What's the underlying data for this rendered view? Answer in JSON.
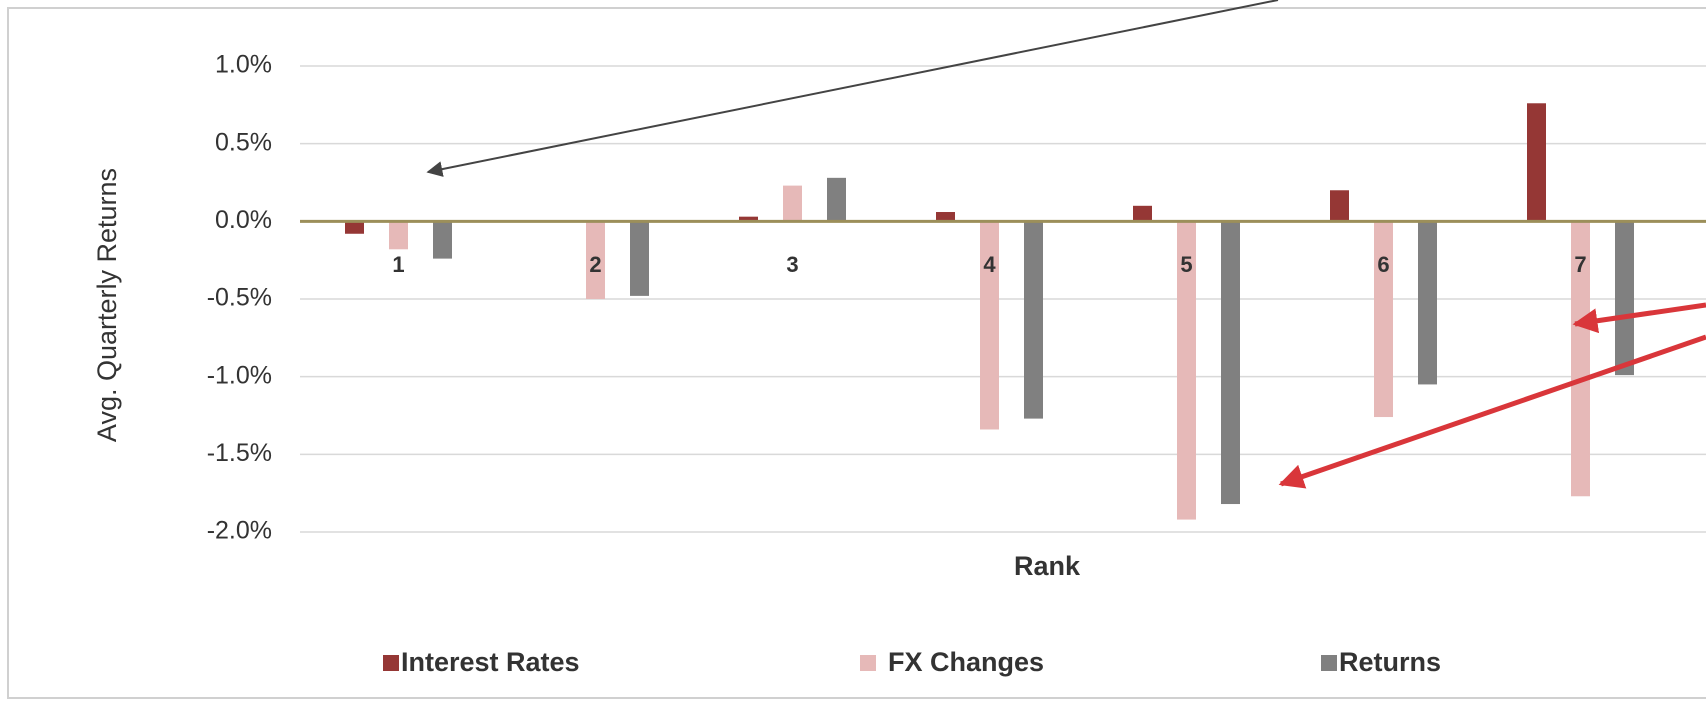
{
  "chart_data": {
    "type": "bar",
    "x_label": "Rank",
    "y_label": "Avg. Quarterly Returns",
    "categories": [
      "1",
      "2",
      "3",
      "4",
      "5",
      "6",
      "7"
    ],
    "series": [
      {
        "name": "Interest Rates",
        "color": "#953735",
        "values": [
          -0.08,
          0,
          0.03,
          0.06,
          0.1,
          0.2,
          0.76
        ]
      },
      {
        "name": "FX Changes",
        "color": "#e6b9b8",
        "values": [
          -0.18,
          -0.5,
          0.23,
          -1.34,
          -1.92,
          -1.26,
          -1.77
        ]
      },
      {
        "name": "Returns",
        "color": "#808080",
        "values": [
          -0.24,
          -0.48,
          0.28,
          -1.27,
          -1.82,
          -1.05,
          -0.99
        ]
      }
    ],
    "ylim": [
      -2.0,
      1.0
    ],
    "yticks": [
      {
        "value": 1.0,
        "label": "1.0%"
      },
      {
        "value": 0.5,
        "label": "0.5%"
      },
      {
        "value": 0.0,
        "label": "0.0%"
      },
      {
        "value": -0.5,
        "label": "-0.5%"
      },
      {
        "value": -1.0,
        "label": "-1.0%"
      },
      {
        "value": -1.5,
        "label": "-1.5%"
      },
      {
        "value": -2.0,
        "label": "-2.0%"
      }
    ],
    "grid": true,
    "legend": "bottom"
  }
}
